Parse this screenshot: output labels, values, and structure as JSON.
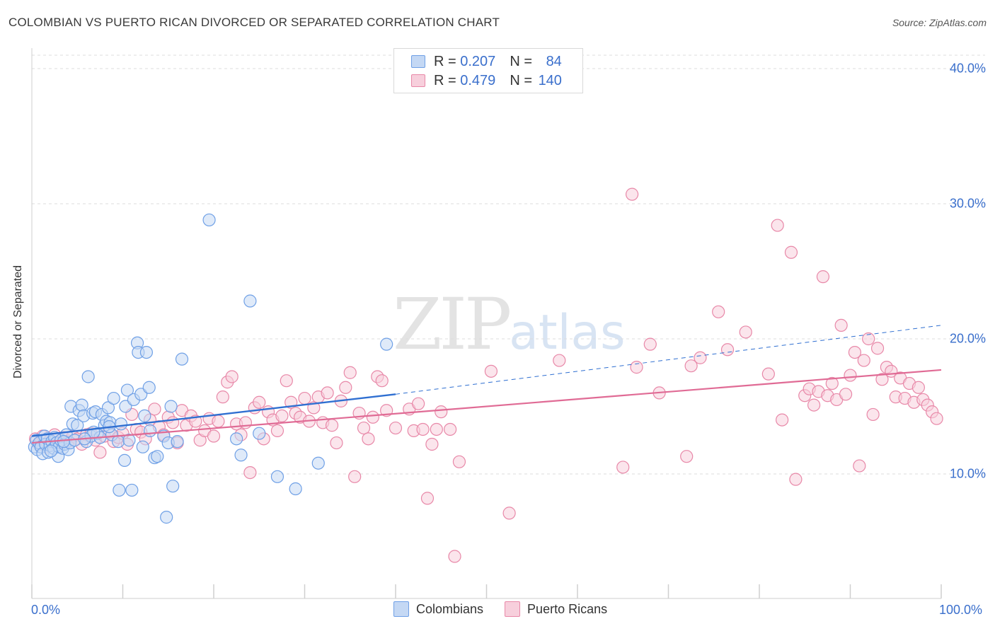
{
  "title": "COLOMBIAN VS PUERTO RICAN DIVORCED OR SEPARATED CORRELATION CHART",
  "source": "Source: ZipAtlas.com",
  "watermark": {
    "zip": "ZIP",
    "atlas": "atlas"
  },
  "legend": {
    "rows": [
      {
        "r_label": "R = ",
        "r_value": "0.207",
        "n_label": "N = ",
        "n_value": "84",
        "color": "#6fa0e6",
        "fill": "#c4d8f4"
      },
      {
        "r_label": "R = ",
        "r_value": "0.479",
        "n_label": "N = ",
        "n_value": "140",
        "color": "#e888a8",
        "fill": "#f7cfdc"
      }
    ]
  },
  "bottom_legend": [
    {
      "label": "Colombians",
      "color": "#6fa0e6",
      "fill": "#c4d8f4"
    },
    {
      "label": "Puerto Ricans",
      "color": "#e888a8",
      "fill": "#f7cfdc"
    }
  ],
  "chart_data": {
    "type": "scatter",
    "title": "COLOMBIAN VS PUERTO RICAN DIVORCED OR SEPARATED CORRELATION CHART",
    "xlabel": "",
    "ylabel": "Divorced or Separated",
    "x_ticks": [
      "0.0%",
      "100.0%"
    ],
    "y_ticks": [
      "10.0%",
      "20.0%",
      "30.0%",
      "40.0%"
    ],
    "xlim": [
      0,
      100
    ],
    "ylim": [
      0,
      42
    ],
    "grid": true,
    "series": [
      {
        "name": "Colombians",
        "color": "#6fa0e6",
        "fill": "#c4d8f4",
        "trend": {
          "x0": 0,
          "y0": 12.8,
          "x1": 40,
          "y1": 15.9,
          "dashed_to_x": 100,
          "dashed_to_y": 21.0
        },
        "points": [
          [
            0.3,
            12.0
          ],
          [
            0.5,
            12.5
          ],
          [
            0.6,
            11.8
          ],
          [
            0.8,
            12.3
          ],
          [
            1.0,
            12.0
          ],
          [
            1.2,
            11.5
          ],
          [
            1.4,
            12.8
          ],
          [
            1.5,
            12.2
          ],
          [
            1.7,
            12.6
          ],
          [
            1.8,
            11.6
          ],
          [
            2.0,
            12.1
          ],
          [
            2.2,
            12.4
          ],
          [
            2.4,
            11.9
          ],
          [
            2.5,
            12.7
          ],
          [
            2.7,
            12.3
          ],
          [
            2.9,
            11.3
          ],
          [
            3.0,
            12.0
          ],
          [
            3.2,
            12.5
          ],
          [
            3.4,
            11.9
          ],
          [
            3.6,
            12.2
          ],
          [
            3.8,
            12.9
          ],
          [
            4.0,
            11.8
          ],
          [
            4.2,
            12.3
          ],
          [
            4.3,
            15.0
          ],
          [
            4.5,
            13.7
          ],
          [
            4.7,
            12.5
          ],
          [
            5.0,
            13.6
          ],
          [
            5.2,
            14.7
          ],
          [
            5.5,
            15.1
          ],
          [
            5.7,
            14.3
          ],
          [
            6.0,
            12.4
          ],
          [
            6.2,
            17.2
          ],
          [
            6.5,
            12.8
          ],
          [
            6.7,
            14.5
          ],
          [
            7.0,
            14.6
          ],
          [
            7.2,
            13.0
          ],
          [
            7.5,
            12.7
          ],
          [
            7.7,
            14.4
          ],
          [
            8.0,
            13.6
          ],
          [
            8.2,
            13.9
          ],
          [
            8.4,
            14.9
          ],
          [
            8.6,
            13.8
          ],
          [
            8.8,
            12.9
          ],
          [
            9.0,
            15.6
          ],
          [
            9.5,
            12.4
          ],
          [
            9.6,
            8.8
          ],
          [
            9.8,
            13.7
          ],
          [
            10.2,
            11.0
          ],
          [
            10.3,
            15.0
          ],
          [
            10.5,
            16.2
          ],
          [
            10.7,
            12.5
          ],
          [
            11.0,
            8.8
          ],
          [
            11.2,
            15.5
          ],
          [
            11.6,
            19.7
          ],
          [
            11.7,
            19.0
          ],
          [
            12.0,
            15.9
          ],
          [
            12.2,
            12.0
          ],
          [
            12.4,
            14.3
          ],
          [
            12.6,
            19.0
          ],
          [
            12.9,
            16.4
          ],
          [
            13.0,
            13.2
          ],
          [
            13.5,
            11.2
          ],
          [
            13.8,
            11.3
          ],
          [
            14.5,
            12.8
          ],
          [
            14.8,
            6.8
          ],
          [
            15.0,
            12.3
          ],
          [
            15.3,
            15.0
          ],
          [
            15.5,
            9.1
          ],
          [
            16.0,
            12.4
          ],
          [
            16.5,
            18.5
          ],
          [
            19.5,
            28.8
          ],
          [
            22.5,
            12.6
          ],
          [
            23.0,
            11.4
          ],
          [
            24.0,
            22.8
          ],
          [
            25.0,
            13.0
          ],
          [
            27.0,
            9.8
          ],
          [
            29.0,
            8.9
          ],
          [
            31.5,
            10.8
          ],
          [
            39.0,
            19.6
          ],
          [
            8.5,
            13.5
          ],
          [
            6.8,
            13.1
          ],
          [
            3.5,
            12.4
          ],
          [
            5.8,
            12.6
          ],
          [
            2.1,
            11.7
          ]
        ]
      },
      {
        "name": "Puerto Ricans",
        "color": "#e888a8",
        "fill": "#f7cfdc",
        "trend": {
          "x0": 0,
          "y0": 12.3,
          "x1": 100,
          "y1": 17.7
        },
        "points": [
          [
            0.4,
            12.6
          ],
          [
            0.8,
            12.2
          ],
          [
            1.2,
            12.8
          ],
          [
            1.6,
            12.0
          ],
          [
            2.0,
            12.5
          ],
          [
            2.5,
            12.9
          ],
          [
            3.0,
            12.3
          ],
          [
            3.5,
            12.7
          ],
          [
            4.0,
            12.4
          ],
          [
            4.5,
            12.8
          ],
          [
            5.0,
            12.6
          ],
          [
            5.5,
            12.2
          ],
          [
            6.0,
            12.9
          ],
          [
            6.5,
            13.0
          ],
          [
            7.0,
            12.5
          ],
          [
            7.5,
            11.6
          ],
          [
            8.0,
            12.8
          ],
          [
            8.5,
            13.1
          ],
          [
            9.0,
            12.4
          ],
          [
            9.5,
            12.7
          ],
          [
            10.0,
            13.0
          ],
          [
            10.5,
            12.2
          ],
          [
            11.0,
            14.4
          ],
          [
            11.5,
            13.3
          ],
          [
            12.0,
            13.1
          ],
          [
            12.5,
            12.6
          ],
          [
            13.0,
            14.0
          ],
          [
            13.5,
            14.8
          ],
          [
            14.0,
            13.5
          ],
          [
            14.5,
            12.9
          ],
          [
            15.0,
            14.2
          ],
          [
            15.5,
            13.8
          ],
          [
            16.0,
            12.3
          ],
          [
            16.5,
            14.7
          ],
          [
            17.0,
            13.6
          ],
          [
            17.5,
            14.3
          ],
          [
            18.0,
            13.9
          ],
          [
            18.5,
            12.5
          ],
          [
            19.0,
            13.2
          ],
          [
            19.5,
            14.1
          ],
          [
            20.0,
            12.8
          ],
          [
            20.5,
            13.9
          ],
          [
            21.0,
            15.7
          ],
          [
            21.5,
            16.8
          ],
          [
            22.0,
            17.2
          ],
          [
            22.5,
            13.7
          ],
          [
            23.0,
            12.9
          ],
          [
            23.5,
            13.8
          ],
          [
            24.0,
            10.1
          ],
          [
            24.5,
            14.9
          ],
          [
            25.0,
            15.3
          ],
          [
            25.5,
            12.6
          ],
          [
            26.0,
            14.6
          ],
          [
            26.5,
            14.0
          ],
          [
            27.0,
            13.2
          ],
          [
            27.5,
            14.3
          ],
          [
            28.0,
            16.9
          ],
          [
            28.5,
            15.3
          ],
          [
            29.0,
            14.5
          ],
          [
            29.5,
            14.2
          ],
          [
            30.0,
            15.6
          ],
          [
            30.5,
            13.9
          ],
          [
            31.0,
            14.9
          ],
          [
            31.5,
            15.7
          ],
          [
            32.0,
            13.8
          ],
          [
            32.5,
            16.0
          ],
          [
            33.0,
            13.6
          ],
          [
            33.5,
            12.3
          ],
          [
            34.0,
            15.4
          ],
          [
            34.5,
            16.4
          ],
          [
            35.0,
            17.5
          ],
          [
            35.5,
            9.8
          ],
          [
            36.0,
            14.5
          ],
          [
            36.5,
            13.4
          ],
          [
            37.0,
            12.6
          ],
          [
            37.5,
            14.2
          ],
          [
            38.0,
            17.2
          ],
          [
            38.5,
            16.9
          ],
          [
            39.0,
            14.7
          ],
          [
            40.0,
            13.4
          ],
          [
            41.5,
            14.8
          ],
          [
            42.0,
            13.2
          ],
          [
            42.5,
            15.2
          ],
          [
            43.0,
            13.3
          ],
          [
            44.0,
            12.2
          ],
          [
            44.5,
            13.3
          ],
          [
            45.0,
            14.6
          ],
          [
            46.0,
            13.3
          ],
          [
            46.5,
            3.9
          ],
          [
            47.0,
            10.9
          ],
          [
            43.5,
            8.2
          ],
          [
            50.5,
            17.6
          ],
          [
            52.5,
            7.1
          ],
          [
            58.0,
            18.4
          ],
          [
            65.0,
            10.5
          ],
          [
            66.0,
            30.7
          ],
          [
            66.5,
            17.9
          ],
          [
            68.0,
            19.6
          ],
          [
            69.0,
            16.0
          ],
          [
            72.0,
            11.3
          ],
          [
            72.5,
            18.0
          ],
          [
            73.5,
            18.6
          ],
          [
            75.5,
            22.0
          ],
          [
            76.5,
            19.2
          ],
          [
            78.5,
            20.5
          ],
          [
            81.0,
            17.4
          ],
          [
            82.0,
            28.4
          ],
          [
            82.5,
            14.0
          ],
          [
            83.5,
            26.4
          ],
          [
            84.0,
            9.6
          ],
          [
            85.0,
            15.8
          ],
          [
            85.5,
            16.3
          ],
          [
            86.0,
            15.1
          ],
          [
            86.5,
            16.1
          ],
          [
            87.0,
            24.6
          ],
          [
            87.5,
            15.8
          ],
          [
            88.0,
            16.7
          ],
          [
            88.5,
            15.5
          ],
          [
            89.0,
            21.0
          ],
          [
            89.5,
            15.9
          ],
          [
            90.0,
            17.3
          ],
          [
            90.5,
            19.0
          ],
          [
            91.0,
            10.6
          ],
          [
            91.5,
            18.4
          ],
          [
            92.0,
            20.0
          ],
          [
            92.5,
            14.4
          ],
          [
            93.0,
            19.3
          ],
          [
            93.5,
            17.0
          ],
          [
            94.0,
            17.9
          ],
          [
            94.5,
            17.6
          ],
          [
            95.0,
            15.7
          ],
          [
            95.5,
            17.1
          ],
          [
            96.0,
            15.6
          ],
          [
            96.5,
            16.7
          ],
          [
            97.0,
            15.3
          ],
          [
            97.5,
            16.4
          ],
          [
            98.0,
            15.5
          ],
          [
            98.5,
            15.1
          ],
          [
            99.0,
            14.6
          ],
          [
            99.5,
            14.1
          ]
        ]
      }
    ]
  }
}
